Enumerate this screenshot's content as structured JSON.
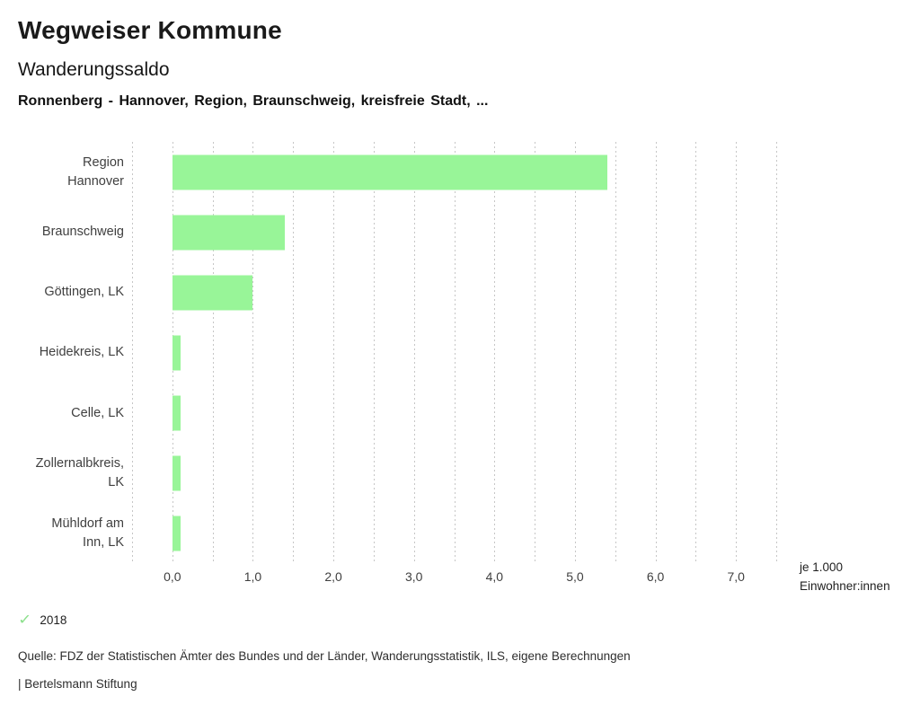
{
  "header": {
    "title": "Wegweiser Kommune",
    "subtitle": "Wanderungssaldo",
    "context_line": "Ronnenberg - Hannover, Region, Braunschweig, kreisfreie Stadt, ..."
  },
  "chart_data": {
    "type": "bar",
    "orientation": "horizontal",
    "title": "Wanderungssaldo",
    "subtitle": "Ronnenberg - Hannover, Region, Braunschweig, kreisfreie Stadt, ...",
    "categories": [
      "Region Hannover",
      "Braunschweig",
      "Göttingen, LK",
      "Heidekreis, LK",
      "Celle, LK",
      "Zollernalbkreis, LK",
      "Mühldorf am Inn, LK"
    ],
    "category_label_lines": [
      [
        "Region",
        "Hannover"
      ],
      [
        "Braunschweig"
      ],
      [
        "Göttingen, LK"
      ],
      [
        "Heidekreis, LK"
      ],
      [
        "Celle, LK"
      ],
      [
        "Zollernalbkreis,",
        "LK"
      ],
      [
        "Mühldorf am",
        "Inn, LK"
      ]
    ],
    "series": [
      {
        "name": "2018",
        "values": [
          5.4,
          1.4,
          1.0,
          0.1,
          0.1,
          0.1,
          0.1
        ]
      }
    ],
    "value_unit": "je 1.000 Einwohner:innen",
    "unit_label_lines": [
      "je 1.000",
      "Einwohner:innen"
    ],
    "xlim": [
      -0.5,
      7.5
    ],
    "grid_step": 0.5,
    "grid": true,
    "x_ticks": [
      {
        "value": 0,
        "label": "0,0"
      },
      {
        "value": 1,
        "label": "1,0"
      },
      {
        "value": 2,
        "label": "2,0"
      },
      {
        "value": 3,
        "label": "3,0"
      },
      {
        "value": 4,
        "label": "4,0"
      },
      {
        "value": 5,
        "label": "5,0"
      },
      {
        "value": 6,
        "label": "6,0"
      },
      {
        "value": 7,
        "label": "7,0"
      }
    ],
    "legend_position": "bottom-left"
  },
  "legend": {
    "check_glyph": "✓",
    "year": "2018",
    "selected": true
  },
  "footer": {
    "source": "Quelle: FDZ der Statistischen Ämter des Bundes und der Länder, Wanderungsstatistik, ILS, eigene Berechnungen",
    "attribution": "| Bertelsmann Stiftung"
  },
  "colors": {
    "bar": "#98f598",
    "check": "#8de08d",
    "grid": "#c6c6c6",
    "title_text": "#111111",
    "axis_text": "#3f3f3f",
    "background": "#ffffff"
  }
}
